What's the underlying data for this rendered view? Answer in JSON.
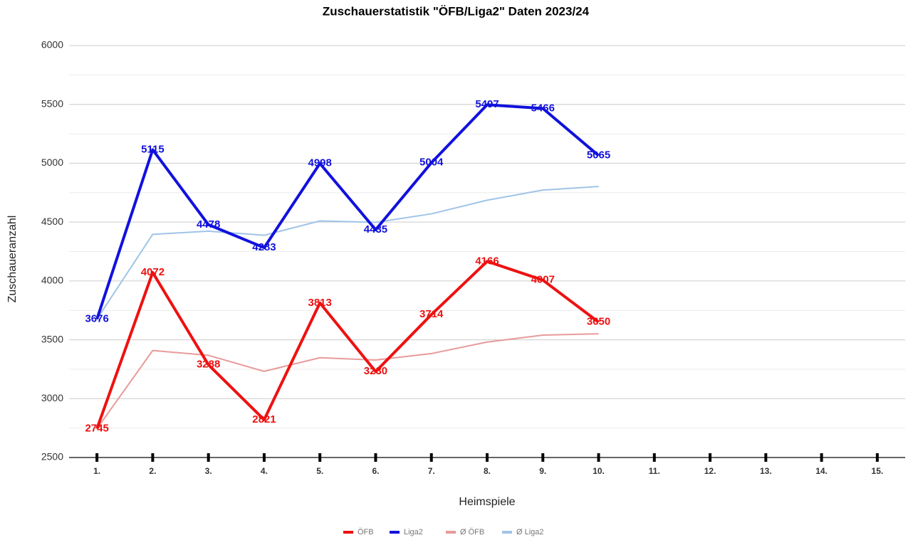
{
  "chart_data": {
    "type": "line",
    "title": "Zuschauerstatistik \"ÖFB/Liga2\" Daten 2023/24",
    "x_label": "Heimspiele",
    "y_label": "Zuschaueranzahl",
    "categories": [
      "1.",
      "2.",
      "3.",
      "4.",
      "5.",
      "6.",
      "7.",
      "8.",
      "9.",
      "10.",
      "11.",
      "12.",
      "13.",
      "14.",
      "15."
    ],
    "series": [
      {
        "name": "ÖFB",
        "color": "#ee1111",
        "width": 4,
        "labels": true,
        "values": [
          2745,
          4072,
          3288,
          2821,
          3813,
          3230,
          3714,
          4166,
          4007,
          3650,
          null,
          null,
          null,
          null,
          null
        ]
      },
      {
        "name": "Liga2",
        "color": "#1111dd",
        "width": 4,
        "labels": true,
        "values": [
          3676,
          5115,
          4478,
          4283,
          4998,
          4435,
          5004,
          5497,
          5466,
          5065,
          null,
          null,
          null,
          null,
          null
        ]
      },
      {
        "name": "Ø ÖFB",
        "color": "#e89a9a",
        "width": 2,
        "labels": false,
        "values": [
          2745,
          3409,
          3368,
          3232,
          3348,
          3328,
          3383,
          3481,
          3540,
          3551,
          null,
          null,
          null,
          null,
          null
        ]
      },
      {
        "name": "Ø Liga2",
        "color": "#a0c4e8",
        "width": 2,
        "labels": false,
        "values": [
          3676,
          4396,
          4423,
          4388,
          4510,
          4498,
          4570,
          4686,
          4772,
          4802,
          null,
          null,
          null,
          null,
          null
        ]
      }
    ],
    "ylim": [
      2500,
      6000
    ],
    "yticks": [
      2500,
      3000,
      3500,
      4000,
      4500,
      5000,
      5500,
      6000
    ],
    "grid": true,
    "legend": "bottom"
  }
}
